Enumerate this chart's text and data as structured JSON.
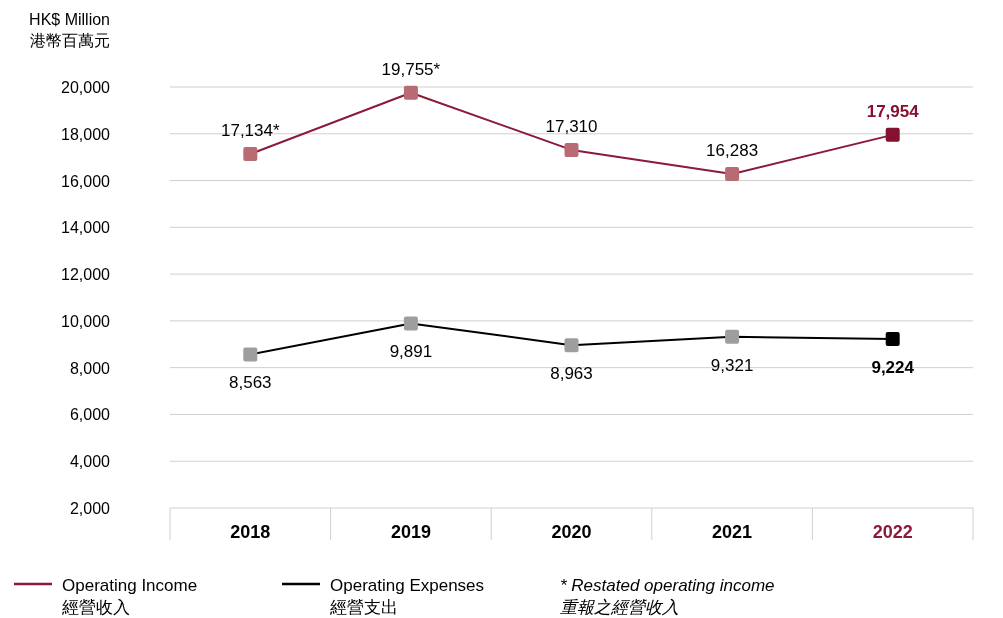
{
  "chart_data": {
    "type": "line",
    "ylabel": "HK$ Million\n港幣百萬元",
    "categories": [
      "2018",
      "2019",
      "2020",
      "2021",
      "2022"
    ],
    "series": [
      {
        "name": "Operating Income\n經營收入",
        "color": "#8b1a3a",
        "colors": [
          "#b86b72",
          "#b86b72",
          "#b86b72",
          "#b86b72",
          "#86102f"
        ],
        "values": [
          17134,
          19755,
          17310,
          16283,
          17954
        ],
        "value_labels": [
          "17,134*",
          "19,755*",
          "17,310",
          "16,283",
          "17,954"
        ]
      },
      {
        "name": "Operating Expenses\n經營支出",
        "color": "#000000",
        "colors": [
          "#9e9e9e",
          "#9e9e9e",
          "#9e9e9e",
          "#9e9e9e",
          "#000000"
        ],
        "values": [
          8563,
          9891,
          8963,
          9321,
          9224
        ],
        "value_labels": [
          "8,563",
          "9,891",
          "8,963",
          "9,321",
          "9,224"
        ]
      }
    ],
    "ylim": [
      2000,
      20000
    ],
    "yticks": [
      {
        "value": 2000,
        "label": "2,000"
      },
      {
        "value": 4000,
        "label": "4,000"
      },
      {
        "value": 6000,
        "label": "6,000"
      },
      {
        "value": 8000,
        "label": "8,000"
      },
      {
        "value": 10000,
        "label": "10,000"
      },
      {
        "value": 12000,
        "label": "12,000"
      },
      {
        "value": 14000,
        "label": "14,000"
      },
      {
        "value": 16000,
        "label": "16,000"
      },
      {
        "value": 18000,
        "label": "18,000"
      },
      {
        "value": 20000,
        "label": "20,000"
      }
    ],
    "grid": "y",
    "legend": "bottom",
    "marker": "square",
    "line_style": "solid",
    "annotations": [
      "* Restated operating income\n重報之經營收入"
    ]
  }
}
